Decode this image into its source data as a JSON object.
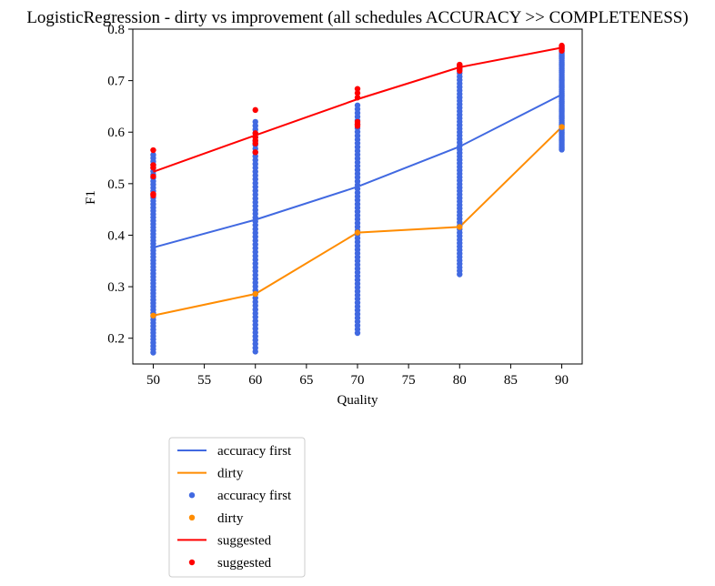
{
  "chart_data": {
    "type": "line",
    "title": "LogisticRegression - dirty vs improvement (all schedules ACCURACY >> COMPLETENESS)",
    "xlabel": "Quality",
    "ylabel": "F1",
    "xlim": [
      48,
      92
    ],
    "ylim": [
      0.15,
      0.8
    ],
    "xticks": [
      50,
      55,
      60,
      65,
      70,
      75,
      80,
      85,
      90
    ],
    "yticks": [
      0.2,
      0.3,
      0.4,
      0.5,
      0.6,
      0.7,
      0.8
    ],
    "grid": false,
    "legend_placement": "below-left",
    "x": [
      50,
      60,
      70,
      80,
      90
    ],
    "series": [
      {
        "name": "accuracy first",
        "kind": "line",
        "color": "#4169E1",
        "values": [
          0.376,
          0.43,
          0.494,
          0.572,
          0.673
        ]
      },
      {
        "name": "dirty",
        "kind": "line",
        "color": "#FF8C00",
        "values": [
          0.244,
          0.286,
          0.405,
          0.416,
          0.61
        ]
      },
      {
        "name": "accuracy first",
        "kind": "scatter",
        "color": "#4169E1",
        "ranges": [
          [
            0.172,
            0.556
          ],
          [
            0.174,
            0.62
          ],
          [
            0.21,
            0.652
          ],
          [
            0.324,
            0.728
          ],
          [
            0.566,
            0.766
          ]
        ]
      },
      {
        "name": "dirty",
        "kind": "scatter",
        "color": "#FF8C00",
        "values": [
          0.244,
          0.286,
          0.405,
          0.416,
          0.61
        ]
      },
      {
        "name": "suggested",
        "kind": "line",
        "color": "#FF0000",
        "values": [
          0.523,
          0.594,
          0.664,
          0.726,
          0.764
        ]
      },
      {
        "name": "suggested",
        "kind": "scatter",
        "color": "#FF0000",
        "points": [
          [
            50,
            0.565
          ],
          [
            50,
            0.536
          ],
          [
            50,
            0.531
          ],
          [
            50,
            0.514
          ],
          [
            50,
            0.48
          ],
          [
            50,
            0.477
          ],
          [
            60,
            0.643
          ],
          [
            60,
            0.598
          ],
          [
            60,
            0.59
          ],
          [
            60,
            0.584
          ],
          [
            60,
            0.578
          ],
          [
            60,
            0.561
          ],
          [
            70,
            0.684
          ],
          [
            70,
            0.676
          ],
          [
            70,
            0.667
          ],
          [
            70,
            0.62
          ],
          [
            70,
            0.615
          ],
          [
            70,
            0.612
          ],
          [
            80,
            0.731
          ],
          [
            80,
            0.728
          ],
          [
            80,
            0.724
          ],
          [
            80,
            0.719
          ],
          [
            90,
            0.768
          ],
          [
            90,
            0.765
          ],
          [
            90,
            0.762
          ],
          [
            90,
            0.758
          ]
        ]
      }
    ]
  }
}
